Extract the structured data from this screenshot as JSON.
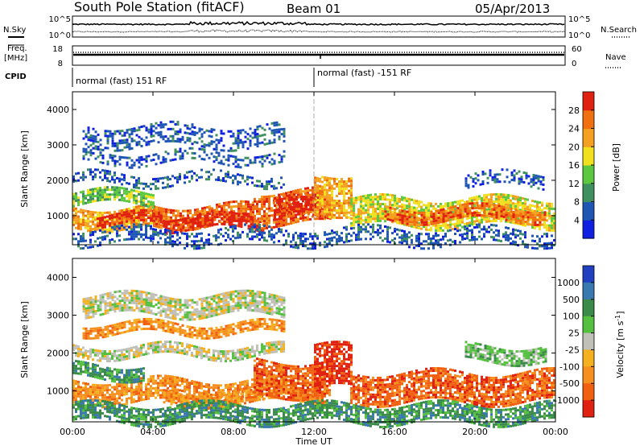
{
  "header": {
    "station": "South Pole Station (fitACF)",
    "beam": "Beam 01",
    "date": "05/Apr/2013"
  },
  "summary_panels": {
    "nsky_label": "N.Sky",
    "nsearch_label": "N.Search",
    "nsky_ticks": [
      "10^5",
      "10^0"
    ],
    "nsearch_ticks": [
      "10^5",
      "10^0"
    ],
    "freq_label": [
      "Freq.",
      "[MHz]"
    ],
    "freq_ticks": [
      "18",
      "8"
    ],
    "nave_label": "Nave",
    "nave_ticks": [
      "60",
      "0"
    ],
    "cpid_label": "CPID",
    "cpid_segments": [
      {
        "label": "normal (fast) 151 RF",
        "start_hour": 0,
        "end_hour": 12
      },
      {
        "label": "normal (fast) -151 RF",
        "start_hour": 12,
        "end_hour": 24
      }
    ]
  },
  "chart_data": [
    {
      "type": "heatmap",
      "title": "",
      "panel": "power",
      "xlabel": "",
      "ylabel": "Slant Range [km]",
      "xlim": [
        0,
        24
      ],
      "ylim": [
        180,
        4500
      ],
      "x_tick_labels": [
        "00:00",
        "04:00",
        "08:00",
        "12:00",
        "16:00",
        "20:00",
        "00:00"
      ],
      "y_ticks": [
        1000,
        2000,
        3000,
        4000
      ],
      "colorbar": {
        "label": "Power [dB]",
        "ticks": [
          "4",
          "8",
          "12",
          "16",
          "20",
          "24",
          "28"
        ],
        "colors": [
          "#1020e0",
          "#1f56b4",
          "#3f8f5f",
          "#5cc840",
          "#f0e020",
          "#f5a020",
          "#f07010",
          "#e02010"
        ]
      },
      "bands": [
        {
          "t0": 0.0,
          "t1": 4.0,
          "r0": 650,
          "r1": 1250,
          "level": 5
        },
        {
          "t0": 1.2,
          "t1": 4.5,
          "r0": 750,
          "r1": 1050,
          "level": 7
        },
        {
          "t0": 4.0,
          "t1": 9.0,
          "r0": 700,
          "r1": 1300,
          "level": 6
        },
        {
          "t0": 4.5,
          "t1": 9.5,
          "r0": 650,
          "r1": 1000,
          "level": 7
        },
        {
          "t0": 9.0,
          "t1": 12.5,
          "r0": 800,
          "r1": 1700,
          "level": 6
        },
        {
          "t0": 10.0,
          "t1": 12.8,
          "r0": 900,
          "r1": 1500,
          "level": 7
        },
        {
          "t0": 12.0,
          "t1": 13.8,
          "r0": 1100,
          "r1": 2200,
          "level": 5
        },
        {
          "t0": 13.8,
          "t1": 24.0,
          "r0": 700,
          "r1": 1500,
          "level": 4
        },
        {
          "t0": 15.5,
          "t1": 23.5,
          "r0": 850,
          "r1": 1250,
          "level": 6
        },
        {
          "t0": 0.0,
          "t1": 4.0,
          "r0": 1350,
          "r1": 1700,
          "level": 3
        },
        {
          "t0": 0.0,
          "t1": 10.5,
          "r0": 1900,
          "r1": 2200,
          "level": 1
        },
        {
          "t0": 0.5,
          "t1": 10.5,
          "r0": 2500,
          "r1": 2800,
          "level": 1
        },
        {
          "t0": 0.5,
          "t1": 10.5,
          "r0": 3000,
          "r1": 3550,
          "level": 1
        },
        {
          "t0": 19.5,
          "t1": 23.5,
          "r0": 1800,
          "r1": 2200,
          "level": 1
        },
        {
          "t0": 0.0,
          "t1": 24.0,
          "r0": 200,
          "r1": 650,
          "level": 1
        }
      ]
    },
    {
      "type": "heatmap",
      "title": "",
      "panel": "velocity",
      "xlabel": "Time UT",
      "ylabel": "Slant Range [km]",
      "xlim": [
        0,
        24
      ],
      "ylim": [
        180,
        4500
      ],
      "x_tick_labels": [
        "00:00",
        "04:00",
        "08:00",
        "12:00",
        "16:00",
        "20:00",
        "00:00"
      ],
      "y_ticks": [
        1000,
        2000,
        3000,
        4000
      ],
      "colorbar": {
        "label": "Velocity [m s^-1]",
        "ticks": [
          "1000",
          "500",
          "100",
          "25",
          "-25",
          "-100",
          "-500",
          "-1000"
        ],
        "colors": [
          "#2040c0",
          "#3a78b0",
          "#3a8a4a",
          "#55c040",
          "#c0c0b8",
          "#f5b020",
          "#f59020",
          "#f06010",
          "#e02010"
        ]
      },
      "bands": [
        {
          "t0": 0.0,
          "t1": 12.5,
          "r0": 700,
          "r1": 1300,
          "level": 6
        },
        {
          "t0": 4.5,
          "t1": 9.5,
          "r0": 650,
          "r1": 1000,
          "level": 6
        },
        {
          "t0": 9.0,
          "t1": 12.8,
          "r0": 900,
          "r1": 1800,
          "level": 7
        },
        {
          "t0": 12.0,
          "t1": 13.8,
          "r0": 1100,
          "r1": 2200,
          "level": 8
        },
        {
          "t0": 13.8,
          "t1": 24.0,
          "r0": 700,
          "r1": 1500,
          "level": 7
        },
        {
          "t0": 0.0,
          "t1": 3.5,
          "r0": 1350,
          "r1": 1700,
          "level": 2
        },
        {
          "t0": 0.0,
          "t1": 10.5,
          "r0": 1900,
          "r1": 2200,
          "level": 4
        },
        {
          "t0": 0.5,
          "t1": 10.5,
          "r0": 2500,
          "r1": 2800,
          "level": 6
        },
        {
          "t0": 0.5,
          "t1": 10.5,
          "r0": 3000,
          "r1": 3550,
          "level": 4
        },
        {
          "t0": 19.5,
          "t1": 23.5,
          "r0": 1800,
          "r1": 2200,
          "level": 3
        },
        {
          "t0": 0.0,
          "t1": 24.0,
          "r0": 200,
          "r1": 650,
          "level": 2
        }
      ]
    }
  ]
}
